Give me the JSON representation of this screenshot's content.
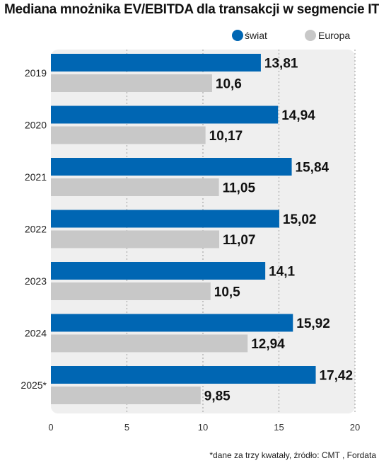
{
  "chart_data": {
    "type": "bar",
    "orientation": "horizontal",
    "title": "Mediana mnożnika EV/EBITDA dla transakcji w segmencie IT",
    "categories": [
      "2019",
      "2020",
      "2021",
      "2022",
      "2023",
      "2024",
      "2025*"
    ],
    "series": [
      {
        "name": "świat",
        "color": "#0066b3",
        "values": [
          13.81,
          14.94,
          15.84,
          15.02,
          14.1,
          15.92,
          17.42
        ],
        "labels": [
          "13,81",
          "14,94",
          "15,84",
          "15,02",
          "14,1",
          "15,92",
          "17,42"
        ]
      },
      {
        "name": "Europa",
        "color": "#c8c8c8",
        "values": [
          10.6,
          10.17,
          11.05,
          11.07,
          10.5,
          12.94,
          9.85
        ],
        "labels": [
          "10,6",
          "10,17",
          "11,05",
          "11,07",
          "10,5",
          "12,94",
          "9,85"
        ]
      }
    ],
    "xlim": [
      0,
      20
    ],
    "xticks": [
      0,
      5,
      10,
      15,
      20
    ],
    "grid": "vertical-dotted",
    "legend_position": "top-right",
    "footnote": "*dane za trzy kwatały, źródło: CMT , Fordata"
  }
}
